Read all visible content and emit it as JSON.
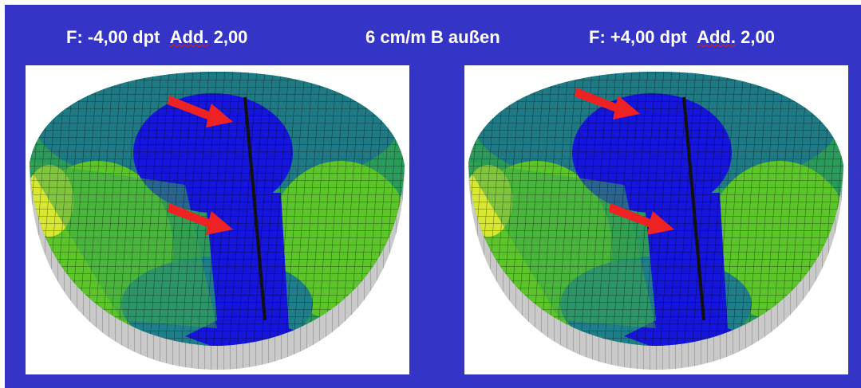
{
  "header": {
    "left": {
      "power": "F: -4,00 dpt",
      "add_label": "Add.",
      "add_value": "2,00"
    },
    "center": "6 cm/m B außen",
    "right": {
      "power": "F: +4,00 dpt",
      "add_label": "Add.",
      "add_value": "2,00"
    }
  }
}
